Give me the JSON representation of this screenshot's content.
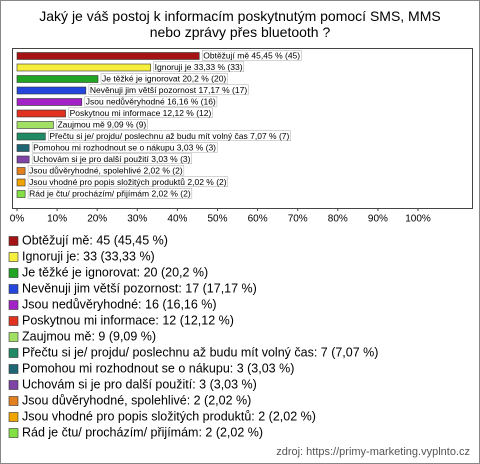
{
  "chart_data": {
    "type": "bar",
    "orientation": "horizontal",
    "title": "Jaký je váš postoj k informacím poskytnutým pomocí SMS, MMS nebo zprávy přes bluetooth ?",
    "categories": [
      "Obtěžují mě",
      "Ignoruji je",
      "Je těžké je ignorovat",
      "Nevěnuji jim větší pozornost",
      "Jsou nedůvěryhodné",
      "Poskytnou mi informace",
      "Zaujmou mě",
      "Přečtu si je/ projdu/ poslechnu až budu mít volný čas",
      "Pomohou mi rozhodnout se o nákupu",
      "Uchovám si je pro další použití",
      "Jsou důvěryhodné, spolehlivé",
      "Jsou vhodné pro popis složitých produktů",
      "Rád je čtu/ procházím/ přijímám"
    ],
    "values": [
      45.45,
      33.33,
      20.2,
      17.17,
      16.16,
      12.12,
      9.09,
      7.07,
      3.03,
      3.03,
      2.02,
      2.02,
      2.02
    ],
    "value_labels": [
      "Obtěžují mě 45,45 % (45)",
      "Ignoruji je 33,33 % (33)",
      "Je těžké je ignorovat 20,2 % (20)",
      "Nevěnuji jim větší pozornost 17,17 % (17)",
      "Jsou nedůvěryhodné 16,16 % (16)",
      "Poskytnou mi informace 12,12 % (12)",
      "Zaujmou mě 9,09 % (9)",
      "Přečtu si je/ projdu/ poslechnu až budu mít volný čas 7,07 % (7)",
      "Pomohou mi rozhodnout se o nákupu 3,03 % (3)",
      "Uchovám si je pro další použití 3,03 % (3)",
      "Jsou důvěryhodné, spolehlivé 2,02 % (2)",
      "Jsou vhodné pro popis složitých produktů 2,02 % (2)",
      "Rád je čtu/ procházím/ přijímám 2,02 % (2)"
    ],
    "legend_labels": [
      "Obtěžují mě: 45 (45,45 %)",
      "Ignoruji je: 33 (33,33 %)",
      "Je těžké je ignorovat: 20 (20,2 %)",
      "Nevěnuji jim větší pozornost: 17 (17,17 %)",
      "Jsou nedůvěryhodné: 16 (16,16 %)",
      "Poskytnou mi informace: 12 (12,12 %)",
      "Zaujmou mě: 9 (9,09 %)",
      "Přečtu si je/ projdu/ poslechnu až budu mít volný čas: 7 (7,07 %)",
      "Pomohou mi rozhodnout se o nákupu: 3 (3,03 %)",
      "Uchovám si je pro další použití: 3 (3,03 %)",
      "Jsou důvěryhodné, spolehlivé: 2 (2,02 %)",
      "Jsou vhodné pro popis složitých produktů: 2 (2,02 %)",
      "Rád je čtu/ procházím/ přijímám: 2 (2,02 %)"
    ],
    "colors": [
      "#a51414",
      "#f6ee3c",
      "#22a522",
      "#2446dc",
      "#a322c8",
      "#e0321e",
      "#a2e064",
      "#1f8a63",
      "#1f6674",
      "#7f44a6",
      "#e0801e",
      "#f0a400",
      "#82e044"
    ],
    "xlim": [
      0,
      100
    ],
    "xticks": [
      {
        "value": 0,
        "label": "0%"
      },
      {
        "value": 10,
        "label": "10%"
      },
      {
        "value": 20,
        "label": "20%"
      },
      {
        "value": 30,
        "label": "30%"
      },
      {
        "value": 40,
        "label": "40%"
      },
      {
        "value": 50,
        "label": "50%"
      },
      {
        "value": 60,
        "label": "60%"
      },
      {
        "value": 70,
        "label": "70%"
      },
      {
        "value": 80,
        "label": "80%"
      },
      {
        "value": 90,
        "label": "90%"
      },
      {
        "value": 100,
        "label": "100%"
      }
    ],
    "grid": false,
    "source": "zdroj: https://primy-marketing.vyplnto.cz"
  }
}
